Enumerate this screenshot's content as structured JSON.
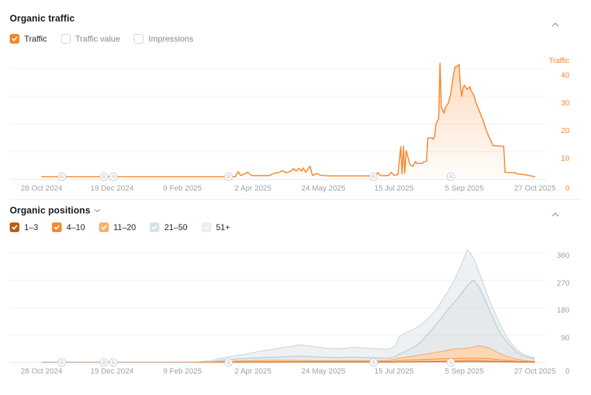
{
  "ui_colors": {
    "accent_orange": "#f8872b",
    "dark_orange": "#c05c10",
    "light_orange": "#fbb069",
    "gray_blue": "#d9e1e8",
    "light_gray": "#e8edf2",
    "axis_text": "#9aa1a8",
    "grid_line": "#f0f1f3"
  },
  "panels": {
    "traffic": {
      "title": "Organic traffic",
      "collapse_icon": "chevron-up",
      "legend": [
        {
          "label": "Traffic",
          "checked": true,
          "color": "#f8872b"
        },
        {
          "label": "Traffic value",
          "checked": false
        },
        {
          "label": "Impressions",
          "checked": false
        }
      ]
    },
    "positions": {
      "title": "Organic positions",
      "dropdown_icon": "chevron-down",
      "collapse_icon": "chevron-up",
      "legend": [
        {
          "label": "1–3",
          "checked": true,
          "color": "#c05c10"
        },
        {
          "label": "4–10",
          "checked": true,
          "color": "#f8872b"
        },
        {
          "label": "11–20",
          "checked": true,
          "color": "#fbb069"
        },
        {
          "label": "21–50",
          "checked": true,
          "color": "#d9e1e8"
        },
        {
          "label": "51+",
          "checked": true,
          "color": "#e8edf2"
        }
      ]
    }
  },
  "chart_data": [
    {
      "type": "area",
      "title": "Organic traffic",
      "ylabel": "Traffic",
      "ylim": [
        0,
        42.75
      ],
      "yticks": [
        0,
        10,
        20,
        30,
        40
      ],
      "x_tick_labels": [
        "28 Oct 2024",
        "19 Dec 2024",
        "9 Feb 2025",
        "2 Apr 2025",
        "24 May 2025",
        "15 Jul 2025",
        "5 Sep 2025",
        "27 Oct 2025"
      ],
      "x_range_days": [
        0,
        364
      ],
      "x_tick_interval_days": 52,
      "grid": true,
      "legend_position": "top-left",
      "line_color": "#f8872b",
      "google_update_marker_days": [
        15,
        46,
        53,
        138,
        245,
        302
      ],
      "series": [
        {
          "name": "Traffic",
          "points_day_value": [
            [
              0,
              1
            ],
            [
              140,
              1
            ],
            [
              143,
              1
            ],
            [
              145,
              2.8
            ],
            [
              147,
              1.4
            ],
            [
              152,
              2.6
            ],
            [
              155,
              1.4
            ],
            [
              168,
              1.4
            ],
            [
              172,
              2.3
            ],
            [
              175,
              2.5
            ],
            [
              178,
              3.2
            ],
            [
              180,
              2.4
            ],
            [
              184,
              3
            ],
            [
              186,
              3.9
            ],
            [
              188,
              3
            ],
            [
              190,
              4
            ],
            [
              192,
              3
            ],
            [
              193,
              4.2
            ],
            [
              195,
              2.6
            ],
            [
              198,
              4.8
            ],
            [
              200,
              1.4
            ],
            [
              203,
              2.2
            ],
            [
              206,
              1.5
            ],
            [
              212,
              1.3
            ],
            [
              244,
              1.3
            ],
            [
              247,
              1.3
            ],
            [
              248,
              2.5
            ],
            [
              250,
              1.4
            ],
            [
              256,
              1.4
            ],
            [
              258,
              2.6
            ],
            [
              260,
              1.5
            ],
            [
              263,
              1.8
            ],
            [
              265,
              11.8
            ],
            [
              266,
              2
            ],
            [
              267,
              12
            ],
            [
              268,
              2.2
            ],
            [
              269,
              10.5
            ],
            [
              271,
              6.8
            ],
            [
              272,
              5.2
            ],
            [
              274,
              4.8
            ],
            [
              276,
              6.5
            ],
            [
              277,
              5.8
            ],
            [
              281,
              5.8
            ],
            [
              282,
              6.4
            ],
            [
              284,
              6.5
            ],
            [
              285,
              15
            ],
            [
              288,
              15
            ],
            [
              289,
              14.5
            ],
            [
              290,
              15.5
            ],
            [
              291,
              20
            ],
            [
              293,
              22
            ],
            [
              294,
              42
            ],
            [
              295,
              26
            ],
            [
              297,
              24
            ],
            [
              298,
              26
            ],
            [
              300,
              27.5
            ],
            [
              302,
              31
            ],
            [
              304,
              38
            ],
            [
              305,
              40.5
            ],
            [
              307,
              41
            ],
            [
              308,
              41.5
            ],
            [
              309,
              34
            ],
            [
              310,
              30
            ],
            [
              311,
              33
            ],
            [
              312,
              34
            ],
            [
              314,
              32.5
            ],
            [
              316,
              33.5
            ],
            [
              317,
              32
            ],
            [
              319,
              30.5
            ],
            [
              320,
              28.5
            ],
            [
              322,
              26
            ],
            [
              324,
              23.5
            ],
            [
              326,
              21
            ],
            [
              328,
              18
            ],
            [
              330,
              15.5
            ],
            [
              332,
              13.5
            ],
            [
              333,
              12.2
            ],
            [
              341,
              12
            ],
            [
              342,
              2.5
            ],
            [
              349,
              2.5
            ],
            [
              351,
              2
            ],
            [
              356,
              1.8
            ],
            [
              360,
              1.4
            ],
            [
              364,
              1
            ]
          ]
        }
      ]
    },
    {
      "type": "area-stacked",
      "title": "Organic positions",
      "ylim": [
        0,
        382
      ],
      "yticks": [
        0,
        90,
        180,
        270,
        360
      ],
      "x_tick_labels": [
        "28 Oct 2024",
        "19 Dec 2024",
        "9 Feb 2025",
        "2 Apr 2025",
        "24 May 2025",
        "15 Jul 2025",
        "5 Sep 2025",
        "27 Oct 2025"
      ],
      "x_range_days": [
        0,
        364
      ],
      "x_tick_interval_days": 52,
      "grid": true,
      "google_update_marker_days": [
        15,
        46,
        53,
        138,
        245,
        302
      ],
      "x_days": [
        0,
        100,
        115,
        125,
        130,
        140,
        150,
        160,
        170,
        180,
        190,
        200,
        210,
        220,
        230,
        240,
        250,
        255,
        258,
        261,
        264,
        268,
        272,
        276,
        280,
        284,
        288,
        292,
        296,
        300,
        304,
        308,
        312,
        314,
        316,
        318,
        320,
        323,
        326,
        329,
        332,
        336,
        340,
        345,
        350,
        355,
        360,
        364
      ],
      "series": [
        {
          "name": "1–3",
          "stroke": "#c05c10",
          "fill": "rgba(192,92,16,0.45)",
          "values": [
            0.2,
            0.2,
            0.25,
            0.3,
            0.4,
            0.5,
            0.6,
            0.7,
            0.7,
            0.8,
            0.8,
            0.8,
            0.8,
            0.8,
            0.8,
            0.8,
            0.9,
            1,
            1,
            1.2,
            1.5,
            1.8,
            2.1,
            2.4,
            2.7,
            3,
            3.2,
            3.5,
            3.7,
            4,
            4.3,
            4.5,
            4.6,
            4.7,
            4.8,
            4.8,
            4.8,
            4.8,
            4.6,
            4.3,
            4,
            3.5,
            3,
            2.4,
            1.9,
            1.4,
            1,
            0.7
          ]
        },
        {
          "name": "4–10",
          "stroke": "#f8872b",
          "fill": "rgba(248,135,43,0.45)",
          "values": [
            0.3,
            0.3,
            0.35,
            0.7,
            1.1,
            1.5,
            1.9,
            2.3,
            2.3,
            2.2,
            2.2,
            2.2,
            2.2,
            2.2,
            2.2,
            2.2,
            2.3,
            2.5,
            3,
            3.8,
            4.5,
            5.5,
            6.2,
            6.6,
            7,
            7.3,
            7.8,
            8.2,
            8.6,
            9,
            8.9,
            9,
            9.4,
            9.3,
            9.2,
            9.2,
            9.2,
            9.2,
            8.9,
            8.7,
            8,
            6.5,
            5,
            3.8,
            2.9,
            2.2,
            1.6,
            1.3
          ]
        },
        {
          "name": "11–20",
          "stroke": "#f7a14f",
          "fill": "rgba(250,176,105,0.50)",
          "values": [
            0.3,
            0.3,
            0.4,
            1,
            1.5,
            2.5,
            3,
            3.5,
            4,
            4,
            3.5,
            3,
            2.5,
            3,
            3,
            3,
            2.8,
            3,
            4,
            6,
            8,
            9.4,
            11,
            13,
            15.3,
            17.4,
            20,
            22,
            24,
            28,
            30.5,
            31.8,
            32.5,
            33.5,
            34.5,
            36,
            38,
            40.5,
            39.5,
            36,
            31,
            24.5,
            17.5,
            11.6,
            6.9,
            3.4,
            2.1,
            2
          ]
        },
        {
          "name": "21–50",
          "stroke": "#b3bfc8",
          "fill": "rgba(186,198,206,0.38)",
          "values": [
            0.4,
            0.4,
            0.5,
            1,
            3,
            5.5,
            7.5,
            8.5,
            10,
            12,
            14.5,
            13,
            11.5,
            10,
            11,
            10,
            9,
            7.5,
            7,
            9,
            14,
            18.6,
            25.4,
            32,
            43,
            60.3,
            77,
            96.3,
            115.7,
            134,
            151.3,
            170.7,
            193.5,
            204.5,
            211.5,
            220,
            214,
            191.5,
            165,
            139,
            114,
            83.5,
            60.5,
            42.2,
            24.3,
            15,
            10.3,
            8
          ]
        },
        {
          "name": "51+",
          "stroke": "#c6d0d6",
          "fill": "rgba(199,210,216,0.30)",
          "values": [
            0.8,
            0.8,
            1,
            3,
            6,
            10,
            14,
            21,
            26,
            31,
            37,
            34,
            30,
            29,
            33,
            31,
            30,
            30,
            31,
            35,
            57,
            60.7,
            59.3,
            58,
            56,
            52,
            50,
            48,
            56,
            59,
            71,
            88,
            108,
            118,
            102,
            78,
            64,
            49,
            42,
            34,
            31,
            30,
            24,
            12,
            8,
            6,
            4,
            4
          ]
        }
      ]
    }
  ]
}
